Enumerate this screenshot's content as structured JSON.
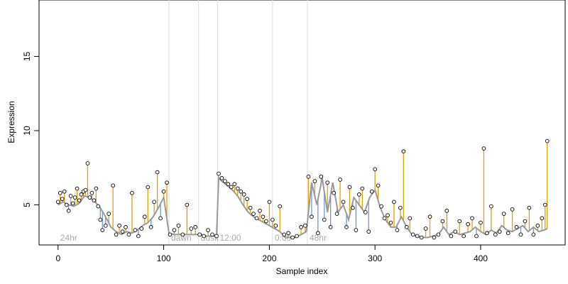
{
  "chart_data": {
    "type": "line",
    "title": "",
    "xlabel": "Sample index",
    "ylabel": "Expression",
    "xlim": [
      -18,
      480
    ],
    "ylim": [
      2.3,
      18.8
    ],
    "x_ticks": [
      0,
      100,
      200,
      300,
      400
    ],
    "y_ticks": [
      5,
      10,
      15
    ],
    "grid": false,
    "phases": [
      {
        "label": "24hr",
        "start": 0
      },
      {
        "label": "dawn",
        "start": 105
      },
      {
        "label": "dusk",
        "start": 133
      },
      {
        "label": "12:00",
        "start": 151
      },
      {
        "label": "0:00",
        "start": 203
      },
      {
        "label": "48hr",
        "start": 236
      }
    ],
    "series": [
      {
        "role": "fitted",
        "color": "#999999",
        "x": [
          0,
          5,
          10,
          15,
          20,
          25,
          30,
          35,
          40,
          45,
          50,
          55,
          60,
          65,
          70,
          75,
          80,
          85,
          90,
          95,
          100,
          105,
          110,
          115,
          120,
          125,
          130,
          135,
          140,
          145,
          150,
          152,
          155,
          160,
          165,
          170,
          175,
          180,
          185,
          190,
          195,
          200,
          205,
          210,
          215,
          220,
          225,
          230,
          235,
          240,
          245,
          250,
          255,
          260,
          265,
          270,
          275,
          280,
          285,
          290,
          295,
          300,
          305,
          310,
          315,
          320,
          325,
          330,
          335,
          340,
          345,
          350,
          355,
          360,
          365,
          370,
          375,
          380,
          385,
          390,
          395,
          400,
          405,
          410,
          415,
          420,
          425,
          430,
          435,
          440,
          445,
          450,
          455,
          460,
          463
        ],
        "y": [
          5.0,
          5.2,
          5.0,
          4.9,
          5.1,
          5.6,
          5.5,
          5.2,
          4.8,
          4.2,
          3.5,
          3.2,
          3.0,
          3.2,
          3.1,
          3.3,
          3.6,
          3.8,
          4.2,
          4.8,
          5.5,
          3.1,
          3.0,
          3.0,
          3.0,
          3.0,
          3.0,
          3.0,
          2.9,
          2.9,
          2.9,
          6.8,
          6.6,
          6.3,
          6.0,
          5.6,
          5.0,
          4.5,
          4.2,
          4.0,
          3.8,
          3.6,
          3.4,
          3.2,
          2.8,
          2.8,
          2.8,
          3.0,
          3.2,
          6.5,
          5.0,
          6.8,
          4.5,
          6.5,
          4.5,
          5.0,
          4.0,
          5.5,
          5.0,
          4.5,
          5.5,
          6.0,
          4.8,
          4.0,
          3.5,
          3.5,
          4.2,
          3.5,
          3.0,
          2.9,
          2.8,
          2.8,
          2.9,
          3.0,
          3.5,
          3.0,
          3.2,
          3.0,
          3.1,
          3.2,
          3.5,
          3.2,
          3.0,
          3.3,
          3.1,
          3.6,
          3.3,
          3.2,
          3.4,
          3.6,
          3.2,
          3.5,
          3.2,
          3.3,
          3.4
        ]
      },
      {
        "role": "observed",
        "x": [
          0,
          2,
          4,
          6,
          8,
          10,
          12,
          14,
          16,
          18,
          20,
          22,
          24,
          26,
          28,
          30,
          32,
          34,
          36,
          38,
          40,
          42,
          45,
          48,
          52,
          55,
          58,
          61,
          64,
          67,
          70,
          73,
          76,
          79,
          82,
          85,
          88,
          91,
          94,
          97,
          100,
          103,
          106,
          110,
          114,
          118,
          122,
          126,
          130,
          134,
          138,
          142,
          146,
          150,
          152,
          155,
          158,
          161,
          164,
          167,
          170,
          173,
          176,
          179,
          182,
          185,
          188,
          191,
          194,
          197,
          200,
          203,
          206,
          210,
          214,
          218,
          222,
          226,
          230,
          234,
          237,
          240,
          243,
          246,
          249,
          252,
          255,
          258,
          261,
          264,
          267,
          270,
          273,
          276,
          279,
          282,
          285,
          288,
          291,
          294,
          297,
          300,
          303,
          306,
          309,
          312,
          315,
          318,
          321,
          324,
          327,
          330,
          333,
          336,
          340,
          344,
          348,
          352,
          356,
          360,
          364,
          368,
          372,
          376,
          380,
          384,
          388,
          392,
          396,
          400,
          403,
          406,
          410,
          414,
          418,
          422,
          426,
          430,
          434,
          438,
          442,
          446,
          450,
          454,
          458,
          461,
          463
        ],
        "y": [
          5.2,
          5.8,
          5.4,
          5.9,
          5.0,
          4.6,
          5.6,
          5.1,
          5.5,
          6.1,
          5.3,
          5.7,
          5.9,
          6.0,
          7.8,
          5.5,
          5.8,
          5.3,
          6.1,
          4.9,
          4.0,
          3.3,
          3.6,
          4.4,
          6.3,
          3.0,
          3.6,
          3.2,
          3.5,
          3.0,
          5.8,
          3.3,
          2.9,
          3.4,
          4.2,
          6.2,
          3.5,
          5.2,
          7.2,
          4.1,
          5.9,
          6.5,
          3.0,
          3.3,
          3.6,
          3.0,
          5.0,
          3.4,
          3.5,
          3.0,
          2.9,
          3.3,
          3.0,
          2.9,
          7.1,
          6.8,
          6.6,
          6.4,
          6.2,
          6.4,
          6.1,
          5.9,
          5.7,
          5.4,
          4.8,
          4.4,
          4.1,
          4.6,
          4.2,
          3.9,
          5.2,
          4.0,
          3.6,
          4.9,
          3.0,
          3.1,
          2.8,
          2.9,
          3.5,
          3.6,
          6.9,
          4.2,
          6.6,
          3.1,
          6.9,
          4.0,
          6.5,
          3.5,
          5.8,
          4.4,
          6.7,
          5.2,
          3.5,
          6.2,
          4.8,
          3.3,
          5.7,
          6.1,
          4.5,
          3.2,
          5.9,
          7.4,
          6.3,
          4.9,
          4.1,
          4.3,
          3.8,
          5.2,
          3.3,
          4.8,
          8.6,
          3.5,
          4.1,
          3.0,
          2.9,
          2.8,
          3.4,
          4.2,
          2.8,
          3.0,
          3.9,
          4.6,
          2.9,
          3.2,
          3.9,
          2.9,
          3.7,
          4.1,
          2.9,
          3.8,
          8.8,
          3.1,
          4.9,
          3.0,
          3.2,
          4.4,
          3.1,
          4.7,
          3.5,
          3.0,
          3.9,
          4.8,
          3.0,
          3.6,
          4.1,
          5.0,
          9.3
        ]
      }
    ],
    "colors": {
      "fitted_line": "#999999",
      "residual_above": "#e69f00",
      "residual_below": "#6f97d6",
      "phase_divider": "#dddddd",
      "phase_label": "#aaaaaa",
      "point_fill": "#ffffff",
      "point_stroke": "#000000"
    }
  }
}
